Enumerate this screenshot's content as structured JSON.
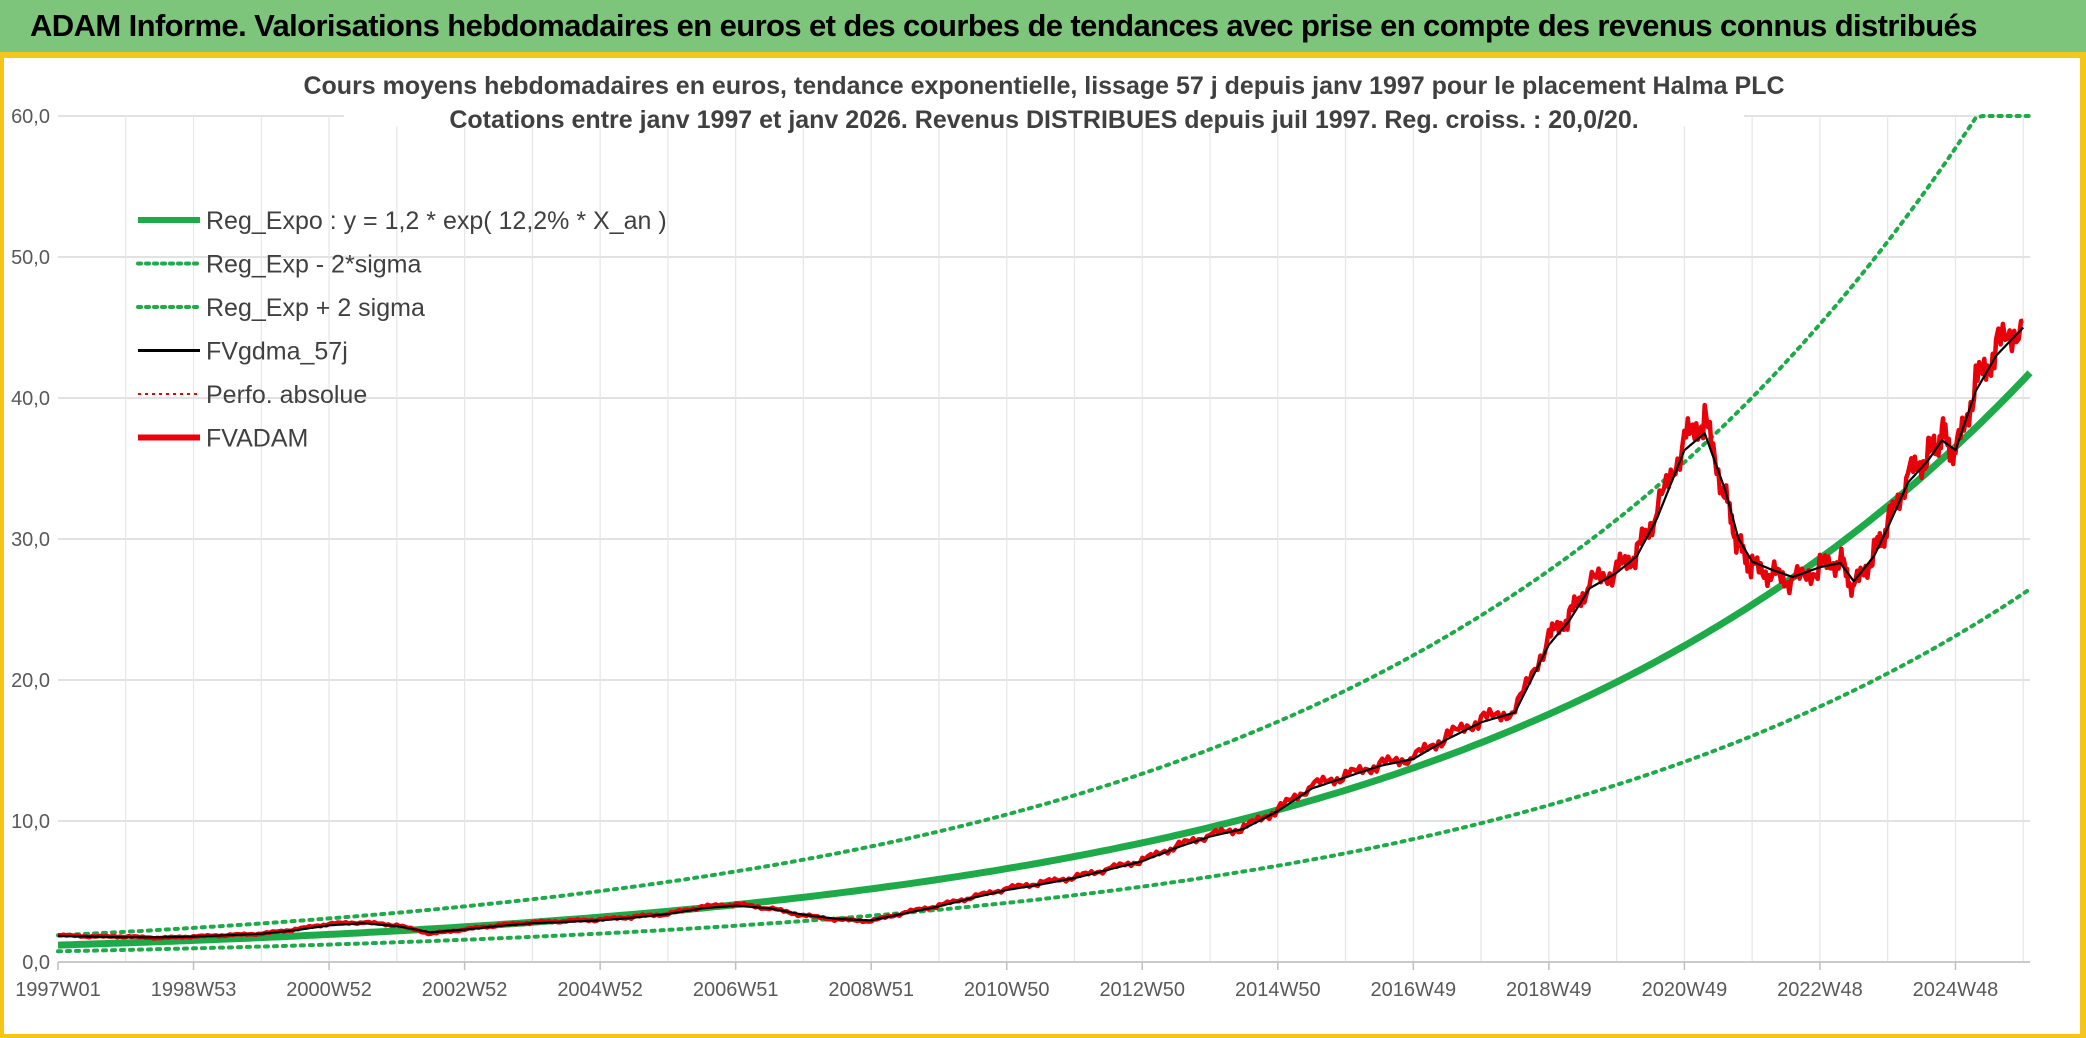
{
  "header": {
    "title": "ADAM Informe. Valorisations hebdomadaires en euros et des courbes de tendances avec prise en compte des revenus connus distribués"
  },
  "colors": {
    "banner": "#7dc57a",
    "frame": "#f5c518",
    "trend": "#1faa4a",
    "smooth": "#000000",
    "fvadam": "#e8000b",
    "perfo": "#e8000b",
    "grid": "#d9d9d9"
  },
  "chart_data": {
    "type": "line",
    "title": "Cours moyens hebdomadaires en euros, tendance exponentielle, lissage 57 j depuis janv 1997 pour le placement Halma PLC",
    "subtitle": "Cotations entre janv 1997 et janv 2026. Revenus DISTRIBUES depuis juil 1997. Reg. croiss. : 20,0/20.",
    "xlabel": "",
    "ylabel": "",
    "x_range": [
      1997.0,
      2026.1
    ],
    "ylim": [
      0,
      60
    ],
    "y_ticks": [
      "0,0",
      "10,0",
      "20,0",
      "30,0",
      "40,0",
      "50,0",
      "60,0"
    ],
    "y_tick_values": [
      0,
      10,
      20,
      30,
      40,
      50,
      60
    ],
    "x_tick_labels": [
      "1997W01",
      "1998W53",
      "2000W52",
      "2002W52",
      "2004W52",
      "2006W51",
      "2008W51",
      "2010W50",
      "2012W50",
      "2014W50",
      "2016W49",
      "2018W49",
      "2020W49",
      "2022W48",
      "2024W48"
    ],
    "x_tick_values": [
      1997.0,
      1999.0,
      2001.0,
      2003.0,
      2005.0,
      2007.0,
      2009.0,
      2011.0,
      2013.0,
      2015.0,
      2017.0,
      2019.0,
      2021.0,
      2023.0,
      2025.0
    ],
    "grid": true,
    "legend_position": "top-left",
    "regression": {
      "a": 1.2,
      "rate": 0.122,
      "sigma_factor": 1.58
    },
    "legend": [
      {
        "key": "reg",
        "label": "Reg_Expo : y = 1,2 * exp( 12,2% *  X_an )",
        "color": "#1faa4a",
        "style": "solid-thick"
      },
      {
        "key": "low",
        "label": "Reg_Exp - 2*sigma",
        "color": "#1faa4a",
        "style": "dotted"
      },
      {
        "key": "high",
        "label": "Reg_Exp + 2 sigma",
        "color": "#1faa4a",
        "style": "dotted"
      },
      {
        "key": "smooth",
        "label": "FVgdma_57j",
        "color": "#000000",
        "style": "solid"
      },
      {
        "key": "perfo",
        "label": "Perfo. absolue",
        "color": "#e8000b",
        "style": "dotted-thin"
      },
      {
        "key": "fvadam",
        "label": "FVADAM",
        "color": "#e8000b",
        "style": "solid-thick"
      }
    ],
    "series": [
      {
        "name": "FVADAM",
        "x": [
          1997.0,
          1997.5,
          1998.0,
          1998.5,
          1999.0,
          1999.5,
          2000.0,
          2000.5,
          2001.0,
          2001.5,
          2002.0,
          2002.5,
          2003.0,
          2003.5,
          2004.0,
          2004.5,
          2005.0,
          2005.5,
          2006.0,
          2006.5,
          2007.0,
          2007.5,
          2008.0,
          2008.5,
          2009.0,
          2009.5,
          2010.0,
          2010.5,
          2011.0,
          2011.5,
          2012.0,
          2012.5,
          2013.0,
          2013.5,
          2014.0,
          2014.5,
          2015.0,
          2015.5,
          2016.0,
          2016.5,
          2017.0,
          2017.5,
          2018.0,
          2018.5,
          2019.0,
          2019.3,
          2019.6,
          2020.0,
          2020.3,
          2020.6,
          2021.0,
          2021.3,
          2021.6,
          2021.8,
          2022.0,
          2022.3,
          2022.6,
          2023.0,
          2023.3,
          2023.5,
          2023.8,
          2024.0,
          2024.3,
          2024.6,
          2024.8,
          2025.0,
          2025.3,
          2025.6,
          2026.0
        ],
        "values": [
          1.9,
          1.8,
          1.8,
          1.7,
          1.8,
          1.9,
          2.0,
          2.3,
          2.7,
          2.8,
          2.6,
          2.0,
          2.3,
          2.6,
          2.8,
          2.9,
          3.0,
          3.2,
          3.4,
          3.9,
          4.1,
          3.8,
          3.3,
          3.0,
          2.9,
          3.5,
          4.0,
          4.6,
          5.2,
          5.6,
          6.0,
          6.6,
          7.2,
          8.2,
          9.0,
          9.5,
          10.8,
          12.5,
          13.2,
          14.0,
          14.5,
          16.0,
          17.2,
          17.8,
          23.0,
          24.5,
          26.8,
          27.8,
          29.0,
          32.0,
          37.0,
          38.5,
          33.0,
          29.5,
          28.0,
          27.5,
          27.0,
          28.0,
          28.5,
          26.5,
          29.0,
          31.0,
          34.5,
          36.0,
          37.5,
          36.0,
          41.0,
          43.5,
          45.5
        ]
      },
      {
        "name": "FVgdma_57j",
        "x": [
          1997.0,
          1997.5,
          1998.0,
          1998.5,
          1999.0,
          1999.5,
          2000.0,
          2000.5,
          2001.0,
          2001.5,
          2002.0,
          2002.5,
          2003.0,
          2003.5,
          2004.0,
          2004.5,
          2005.0,
          2005.5,
          2006.0,
          2006.5,
          2007.0,
          2007.5,
          2008.0,
          2008.5,
          2009.0,
          2009.5,
          2010.0,
          2010.5,
          2011.0,
          2011.5,
          2012.0,
          2012.5,
          2013.0,
          2013.5,
          2014.0,
          2014.5,
          2015.0,
          2015.5,
          2016.0,
          2016.5,
          2017.0,
          2017.5,
          2018.0,
          2018.5,
          2019.0,
          2019.3,
          2019.6,
          2020.0,
          2020.3,
          2020.6,
          2021.0,
          2021.3,
          2021.6,
          2021.8,
          2022.0,
          2022.3,
          2022.6,
          2023.0,
          2023.3,
          2023.5,
          2023.8,
          2024.0,
          2024.3,
          2024.6,
          2024.8,
          2025.0,
          2025.3,
          2025.6,
          2026.0
        ],
        "values": [
          1.85,
          1.8,
          1.75,
          1.75,
          1.8,
          1.9,
          2.0,
          2.25,
          2.6,
          2.75,
          2.55,
          2.1,
          2.3,
          2.55,
          2.75,
          2.85,
          2.95,
          3.15,
          3.4,
          3.8,
          4.0,
          3.8,
          3.35,
          3.05,
          2.95,
          3.45,
          3.95,
          4.55,
          5.1,
          5.5,
          5.95,
          6.55,
          7.15,
          8.1,
          8.9,
          9.45,
          10.7,
          12.3,
          13.1,
          13.9,
          14.4,
          15.8,
          17.0,
          17.7,
          22.5,
          24.2,
          26.5,
          27.6,
          28.8,
          31.5,
          36.3,
          37.5,
          33.5,
          30.0,
          28.4,
          27.8,
          27.3,
          28.0,
          28.3,
          27.0,
          28.8,
          30.8,
          34.0,
          35.6,
          37.0,
          36.3,
          40.5,
          43.0,
          45.0
        ]
      }
    ]
  }
}
